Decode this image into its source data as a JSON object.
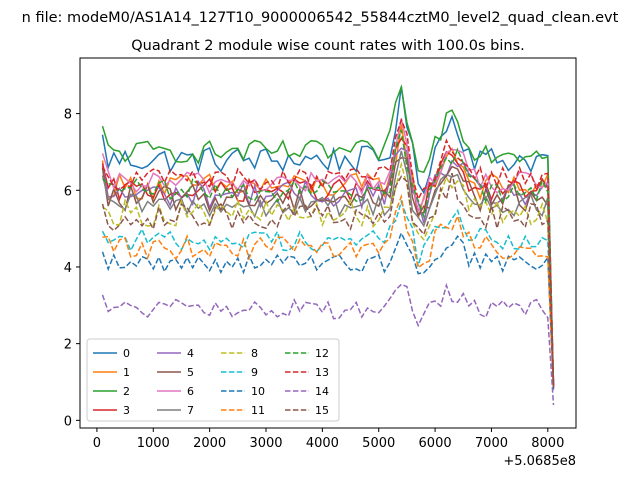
{
  "suptitle": "n file: modeM0/AS1A14_127T10_9000006542_55844cztM0_level2_quad_clean.evt",
  "chart_data": {
    "type": "line",
    "title": "Quadrant 2 module wise count rates with 100.0s bins.",
    "xlabel": "",
    "ylabel": "",
    "x_offset_label": "+5.0685e8",
    "xlim": [
      -300,
      8500
    ],
    "ylim": [
      -0.2,
      9.45
    ],
    "xticks": [
      0,
      1000,
      2000,
      3000,
      4000,
      5000,
      6000,
      7000,
      8000
    ],
    "yticks": [
      0,
      2,
      4,
      6,
      8
    ],
    "grid": false,
    "legend_position": "lower-left",
    "legend_columns": 4,
    "x_start": 100,
    "x_step": 100,
    "x_last": 8100,
    "series": [
      {
        "name": "0",
        "color": "#1f77b4",
        "linestyle": "solid",
        "level": 6.8,
        "amp": 0.35,
        "last": 0.9
      },
      {
        "name": "1",
        "color": "#ff7f0e",
        "linestyle": "solid",
        "level": 6.1,
        "amp": 0.35,
        "last": 0.95
      },
      {
        "name": "2",
        "color": "#2ca02c",
        "linestyle": "solid",
        "level": 7.0,
        "amp": 0.3,
        "last": 0.9
      },
      {
        "name": "3",
        "color": "#d62728",
        "linestyle": "solid",
        "level": 6.0,
        "amp": 0.3,
        "last": 0.85
      },
      {
        "name": "4",
        "color": "#9467bd",
        "linestyle": "solid",
        "level": 5.9,
        "amp": 0.35,
        "last": 0.9
      },
      {
        "name": "5",
        "color": "#8c564b",
        "linestyle": "solid",
        "level": 5.8,
        "amp": 0.35,
        "last": 0.9
      },
      {
        "name": "6",
        "color": "#e377c2",
        "linestyle": "solid",
        "level": 6.2,
        "amp": 0.3,
        "last": 0.95
      },
      {
        "name": "7",
        "color": "#7f7f7f",
        "linestyle": "solid",
        "level": 5.6,
        "amp": 0.3,
        "last": 0.9
      },
      {
        "name": "8",
        "color": "#bcbd22",
        "linestyle": "dashed",
        "level": 5.4,
        "amp": 0.35,
        "last": 0.85
      },
      {
        "name": "9",
        "color": "#17becf",
        "linestyle": "dashed",
        "level": 4.7,
        "amp": 0.3,
        "last": 0.85
      },
      {
        "name": "10",
        "color": "#1f77b4",
        "linestyle": "dashed",
        "level": 4.1,
        "amp": 0.25,
        "last": 0.8
      },
      {
        "name": "11",
        "color": "#ff7f0e",
        "linestyle": "dashed",
        "level": 4.5,
        "amp": 0.3,
        "last": 0.85
      },
      {
        "name": "12",
        "color": "#2ca02c",
        "linestyle": "dashed",
        "level": 6.0,
        "amp": 0.3,
        "last": 0.9
      },
      {
        "name": "13",
        "color": "#d62728",
        "linestyle": "dashed",
        "level": 6.3,
        "amp": 0.3,
        "last": 0.9
      },
      {
        "name": "14",
        "color": "#9467bd",
        "linestyle": "dashed",
        "level": 2.9,
        "amp": 0.25,
        "last": 0.4
      },
      {
        "name": "15",
        "color": "#8c564b",
        "linestyle": "dashed",
        "level": 5.3,
        "amp": 0.35,
        "last": 0.85
      }
    ],
    "features": [
      {
        "type": "peak",
        "x": 5400,
        "height": 1.5,
        "width": 150
      },
      {
        "type": "dip",
        "x": 5750,
        "height": -0.7,
        "width": 120
      },
      {
        "type": "peak",
        "x": 6300,
        "height": 1.0,
        "width": 250
      }
    ]
  }
}
